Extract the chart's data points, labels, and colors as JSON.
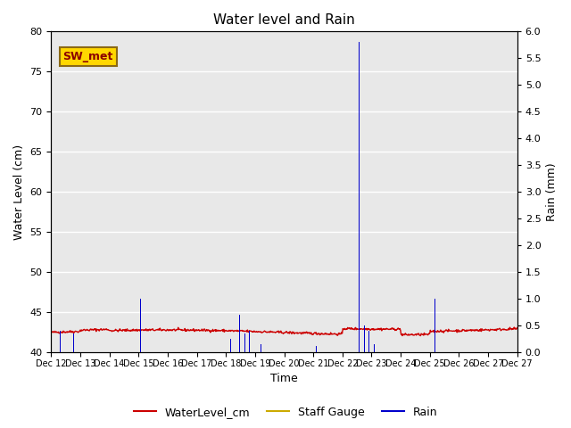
{
  "title": "Water level and Rain",
  "xlabel": "Time",
  "ylabel_left": "Water Level (cm)",
  "ylabel_right": "Rain (mm)",
  "ylim_left": [
    40,
    80
  ],
  "ylim_right": [
    0.0,
    6.0
  ],
  "yticks_left": [
    40,
    45,
    50,
    55,
    60,
    65,
    70,
    75,
    80
  ],
  "yticks_right": [
    0.0,
    0.5,
    1.0,
    1.5,
    2.0,
    2.5,
    3.0,
    3.5,
    4.0,
    4.5,
    5.0,
    5.5,
    6.0
  ],
  "xtick_labels": [
    "Dec 12",
    "Dec 13",
    "Dec 14",
    "Dec 15",
    "Dec 16",
    "Dec 17",
    "Dec 18",
    "Dec 19",
    "Dec 20",
    "Dec 21",
    "Dec 22",
    "Dec 23",
    "Dec 24",
    "Dec 25",
    "Dec 26",
    "Dec 27"
  ],
  "station_label": "SW_met",
  "bg_color": "#e8e8e8",
  "water_color": "#cc0000",
  "rain_color": "#0000cc",
  "staff_color": "#ccaa00",
  "legend_labels": [
    "WaterLevel_cm",
    "Staff Gauge",
    "Rain"
  ],
  "n_days": 16,
  "n_per_day": 48
}
